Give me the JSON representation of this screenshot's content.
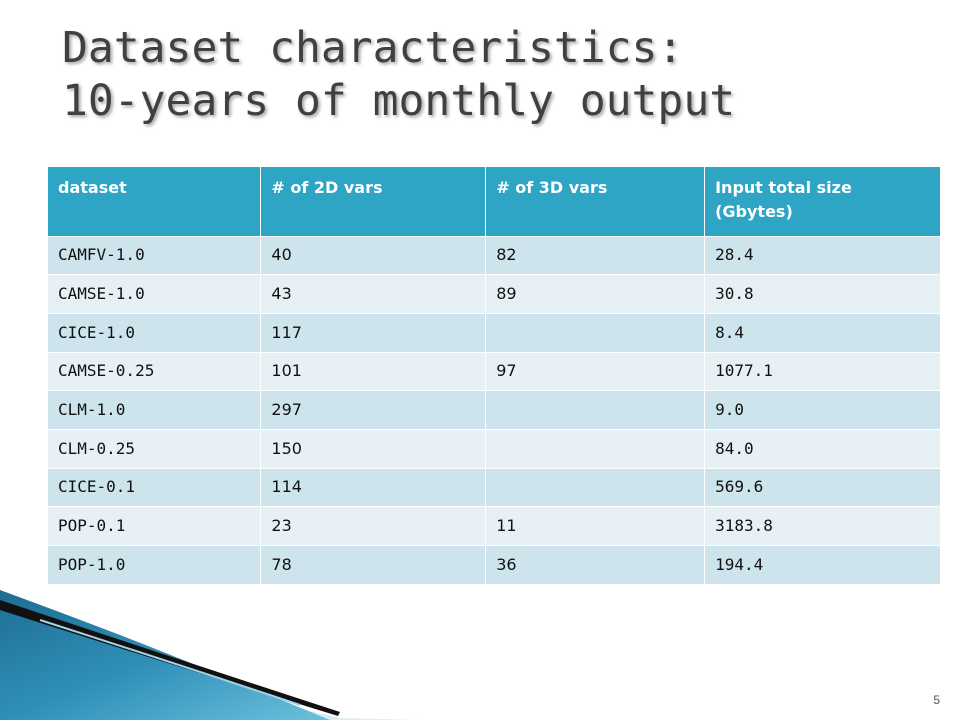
{
  "slide": {
    "title_line1": "Dataset characteristics:",
    "title_line2": "10-years of monthly output",
    "page_number": "5"
  },
  "table": {
    "headers": [
      "dataset",
      "# of 2D vars",
      "# of 3D vars",
      "Input total size (Gbytes)"
    ],
    "rows": [
      [
        "CAMFV-1.0",
        "40",
        "82",
        "28.4"
      ],
      [
        "CAMSE-1.0",
        "43",
        "89",
        "30.8"
      ],
      [
        "CICE-1.0",
        "117",
        "",
        "8.4"
      ],
      [
        "CAMSE-0.25",
        "101",
        "97",
        "1077.1"
      ],
      [
        "CLM-1.0",
        "297",
        "",
        "9.0"
      ],
      [
        "CLM-0.25",
        "150",
        "",
        "84.0"
      ],
      [
        "CICE-0.1",
        "114",
        "",
        "569.6"
      ],
      [
        "POP-0.1",
        "23",
        "11",
        "3183.8"
      ],
      [
        "POP-1.0",
        "78",
        "36",
        "194.4"
      ]
    ]
  },
  "colors": {
    "header_bg": "#2ea5c4",
    "row_odd_bg": "#cde4ec",
    "row_even_bg": "#e7f1f5",
    "title_text": "#404040"
  }
}
